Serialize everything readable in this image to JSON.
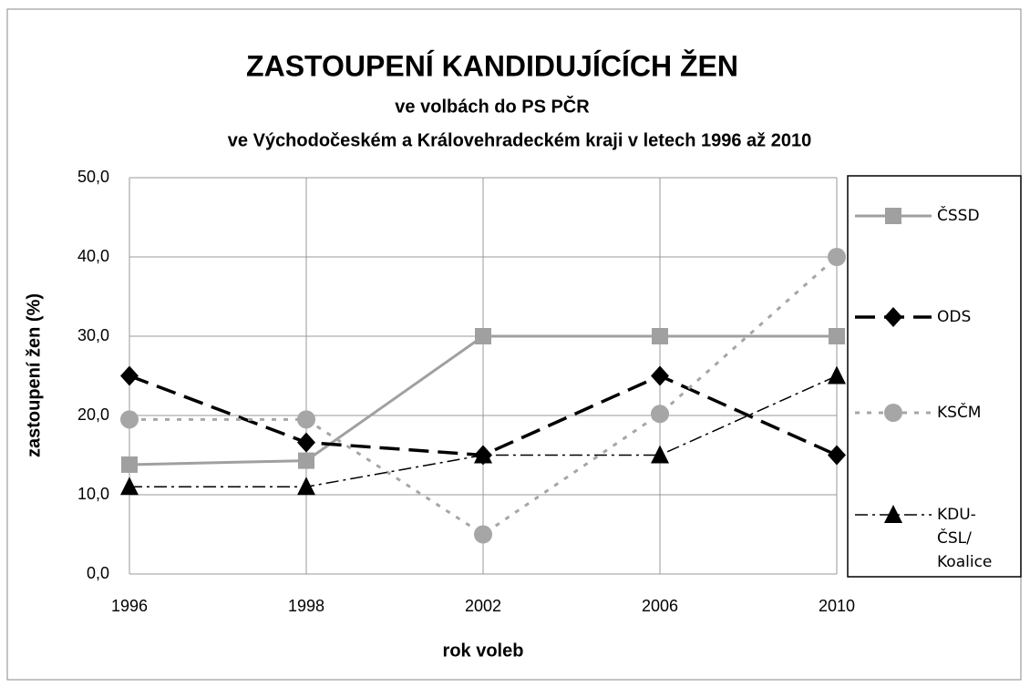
{
  "chart_data": {
    "type": "line",
    "title": "ZASTOUPENÍ KANDIDUJÍCÍCH ŽEN",
    "subtitle": [
      "ve volbách do PS PČR",
      "ve Východočeském a Královehradeckém kraji v letech 1996 až 2010"
    ],
    "xlabel": "rok voleb",
    "ylabel": "zastoupení žen (%)",
    "categories": [
      "1996",
      "1998",
      "2002",
      "2006",
      "2010"
    ],
    "series": [
      {
        "name": "ČSSD",
        "color": "#a0a0a0",
        "marker": "square",
        "dash": "solid",
        "values": [
          13.8,
          14.3,
          30,
          30,
          30
        ]
      },
      {
        "name": "ODS",
        "color": "#000000",
        "marker": "diamond",
        "dash": "dashed",
        "values": [
          25,
          16.6,
          15,
          25,
          15
        ]
      },
      {
        "name": "KSČM",
        "color": "#a6a6a6",
        "marker": "circle",
        "dash": "dotted",
        "values": [
          19.5,
          19.5,
          5,
          20.2,
          40
        ]
      },
      {
        "name": "KDU-ČSL/ Koalice",
        "color": "#000000",
        "marker": "triangle",
        "dash": "dashdot",
        "values": [
          11,
          11,
          15,
          15,
          25
        ]
      }
    ],
    "ylim": [
      0,
      50
    ],
    "yticks": [
      {
        "value": 0,
        "label": "0,0"
      },
      {
        "value": 10,
        "label": "10,0"
      },
      {
        "value": 20,
        "label": "20,0"
      },
      {
        "value": 30,
        "label": "30,0"
      },
      {
        "value": 40,
        "label": "40,0"
      },
      {
        "value": 50,
        "label": "50,0"
      }
    ],
    "grid": true,
    "legend": "right"
  }
}
